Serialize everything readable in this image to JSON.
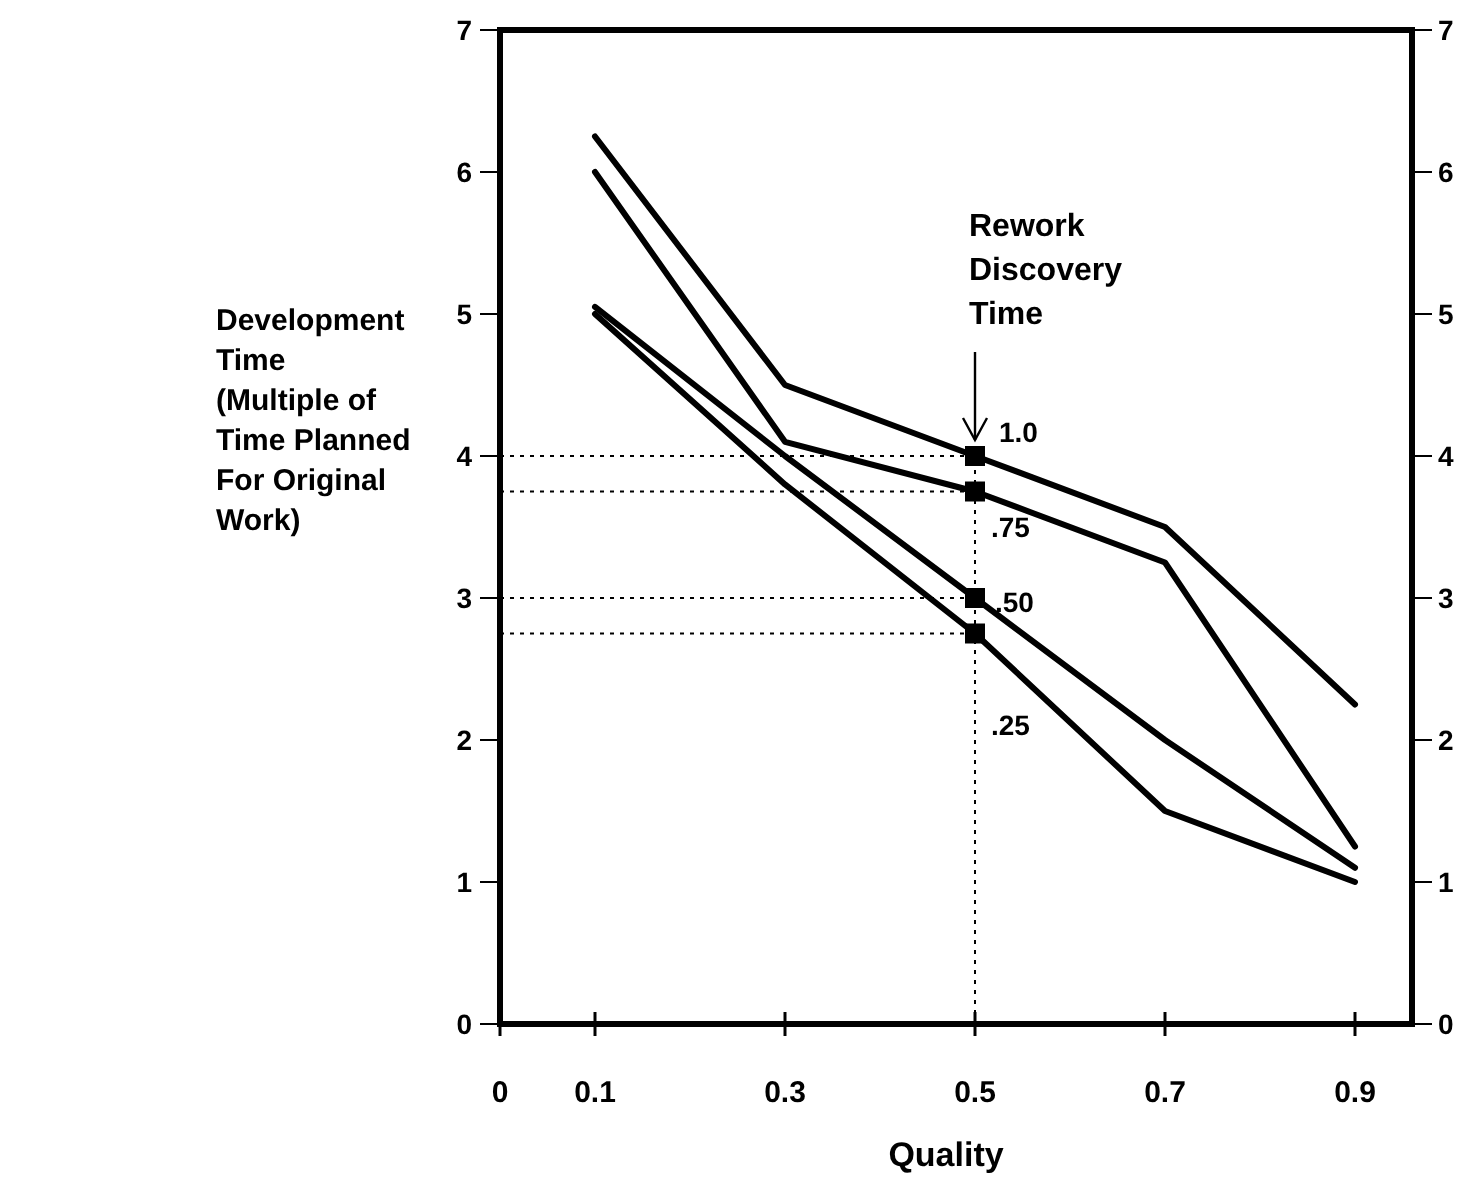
{
  "chart_data": {
    "type": "line",
    "xlabel": "Quality",
    "ylabel": "Development Time (Multiple of Time Planned For Original Work)",
    "xlim": [
      0,
      0.96
    ],
    "xticks": [
      0,
      0.1,
      0.3,
      0.5,
      0.7,
      0.9
    ],
    "ylim": [
      0,
      7
    ],
    "yticks": [
      0,
      1,
      2,
      3,
      4,
      5,
      6,
      7
    ],
    "y2lim": [
      0,
      7
    ],
    "y2ticks": [
      0,
      1,
      2,
      3,
      4,
      5,
      6,
      7
    ],
    "grid": false,
    "marker": "none",
    "line_style": "solid",
    "series": [
      {
        "name": "1.0",
        "color": "#000000",
        "x": [
          0.1,
          0.3,
          0.5,
          0.7,
          0.9
        ],
        "values": [
          6.25,
          4.5,
          4.0,
          3.5,
          2.25
        ]
      },
      {
        "name": ".75",
        "color": "#000000",
        "x": [
          0.1,
          0.3,
          0.5,
          0.7,
          0.9
        ],
        "values": [
          6.0,
          4.1,
          3.75,
          3.25,
          1.25
        ]
      },
      {
        "name": ".50",
        "color": "#000000",
        "x": [
          0.1,
          0.3,
          0.5,
          0.7,
          0.9
        ],
        "values": [
          5.05,
          4.0,
          3.0,
          2.0,
          1.1
        ]
      },
      {
        "name": ".25",
        "color": "#000000",
        "x": [
          0.1,
          0.3,
          0.5,
          0.7,
          0.9
        ],
        "values": [
          5.0,
          3.8,
          2.75,
          1.5,
          1.0
        ]
      },
      {
        "type": "scatter",
        "marker": "square",
        "color": "#000000",
        "x": [
          0.5,
          0.5,
          0.5,
          0.5
        ],
        "values": [
          4.0,
          3.75,
          3.0,
          2.75
        ]
      }
    ],
    "ref_lines": [
      {
        "axis": "x",
        "value": 0.5,
        "line_style": "dotted",
        "color": "#000000"
      },
      {
        "axis": "y",
        "value": 4.0,
        "line_style": "dotted",
        "color": "#000000"
      },
      {
        "axis": "y",
        "value": 3.75,
        "line_style": "dotted",
        "color": "#000000"
      },
      {
        "axis": "y",
        "value": 3.0,
        "line_style": "dotted",
        "color": "#000000"
      },
      {
        "axis": "y",
        "value": 2.75,
        "line_style": "dotted",
        "color": "#000000"
      }
    ],
    "annotations": [
      {
        "text": "Rework Discovery Time",
        "x": 0.5,
        "y": 4.0
      }
    ]
  }
}
